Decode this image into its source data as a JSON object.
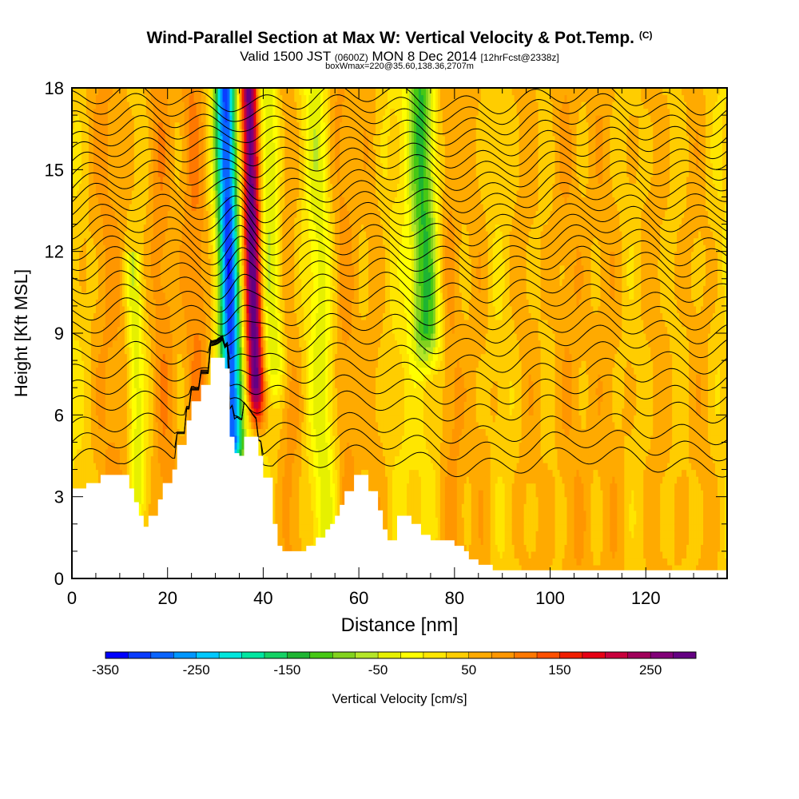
{
  "title": {
    "main": "Wind-Parallel Section at Max W: Vertical Velocity & Pot.Temp.",
    "copyright": "(C)",
    "valid_prefix": "Valid 1500 JST",
    "utc": "(0600Z)",
    "date": "MON 8 Dec 2014",
    "forecast": "[12hrFcst@2338z]",
    "box": "boxWmax=220@35.60,138.36,2707m"
  },
  "chart_data": {
    "type": "heatmap",
    "xlabel": "Distance [nm]",
    "ylabel": "Height [Kft MSL]",
    "xlim": [
      0,
      137
    ],
    "ylim": [
      0,
      18
    ],
    "x_ticks": [
      0,
      20,
      40,
      60,
      80,
      100,
      120
    ],
    "y_ticks": [
      0,
      3,
      6,
      9,
      12,
      15,
      18
    ],
    "colorbar": {
      "label": "Vertical Velocity [cm/s]",
      "range": [
        -350,
        300
      ],
      "step": 25,
      "tick_values": [
        -350,
        -250,
        -150,
        -50,
        50,
        150,
        250
      ],
      "colors": [
        "#0000ff",
        "#0a3cff",
        "#0a64ff",
        "#0096ff",
        "#00c8ff",
        "#00e6dc",
        "#00e6a0",
        "#14d264",
        "#1eb432",
        "#46c814",
        "#82d21e",
        "#b4e628",
        "#e6f000",
        "#ffff00",
        "#ffe600",
        "#ffcd00",
        "#ffaa00",
        "#ff9600",
        "#ff7800",
        "#ff5000",
        "#f01e00",
        "#e60014",
        "#c8003c",
        "#a0005a",
        "#820078",
        "#640082"
      ]
    },
    "terrain": [
      [
        0,
        3.3
      ],
      [
        3,
        3.3
      ],
      [
        3,
        3.5
      ],
      [
        6,
        3.5
      ],
      [
        6,
        3.8
      ],
      [
        12,
        3.8
      ],
      [
        12,
        3.3
      ],
      [
        13,
        3.3
      ],
      [
        13,
        2.8
      ],
      [
        14,
        2.8
      ],
      [
        14,
        2.3
      ],
      [
        15,
        2.3
      ],
      [
        15,
        1.9
      ],
      [
        16,
        1.9
      ],
      [
        16,
        2.3
      ],
      [
        18,
        2.3
      ],
      [
        18,
        2.9
      ],
      [
        19,
        2.9
      ],
      [
        19,
        3.5
      ],
      [
        21,
        3.5
      ],
      [
        21,
        4.0
      ],
      [
        22,
        4.0
      ],
      [
        22,
        4.9
      ],
      [
        24,
        4.9
      ],
      [
        24,
        5.8
      ],
      [
        25,
        5.8
      ],
      [
        25,
        6.5
      ],
      [
        27,
        6.5
      ],
      [
        27,
        7.1
      ],
      [
        29,
        7.1
      ],
      [
        29,
        8.1
      ],
      [
        32,
        8.1
      ],
      [
        32,
        7.7
      ],
      [
        33,
        7.7
      ],
      [
        33,
        5.2
      ],
      [
        34,
        5.2
      ],
      [
        34,
        4.6
      ],
      [
        35,
        4.6
      ],
      [
        35,
        4.5
      ],
      [
        36,
        4.5
      ],
      [
        36,
        5.2
      ],
      [
        39,
        5.2
      ],
      [
        39,
        4.5
      ],
      [
        40,
        4.5
      ],
      [
        40,
        3.7
      ],
      [
        42,
        3.7
      ],
      [
        42,
        2.0
      ],
      [
        43,
        2.0
      ],
      [
        43,
        1.2
      ],
      [
        44,
        1.2
      ],
      [
        44,
        1.0
      ],
      [
        49,
        1.0
      ],
      [
        49,
        1.2
      ],
      [
        51,
        1.2
      ],
      [
        51,
        1.5
      ],
      [
        53,
        1.5
      ],
      [
        53,
        1.8
      ],
      [
        54,
        1.8
      ],
      [
        54,
        2.0
      ],
      [
        55,
        2.0
      ],
      [
        55,
        2.3
      ],
      [
        56,
        2.3
      ],
      [
        56,
        2.7
      ],
      [
        57,
        2.7
      ],
      [
        57,
        3.2
      ],
      [
        59,
        3.2
      ],
      [
        59,
        3.8
      ],
      [
        62,
        3.8
      ],
      [
        62,
        3.2
      ],
      [
        64,
        3.2
      ],
      [
        64,
        2.5
      ],
      [
        65,
        2.5
      ],
      [
        65,
        1.8
      ],
      [
        66,
        1.8
      ],
      [
        66,
        1.4
      ],
      [
        68,
        1.4
      ],
      [
        68,
        2.3
      ],
      [
        71,
        2.3
      ],
      [
        71,
        2.0
      ],
      [
        73,
        2.0
      ],
      [
        73,
        1.6
      ],
      [
        75,
        1.6
      ],
      [
        75,
        1.4
      ],
      [
        80,
        1.4
      ],
      [
        80,
        1.2
      ],
      [
        82,
        1.2
      ],
      [
        82,
        1.0
      ],
      [
        83,
        1.0
      ],
      [
        83,
        0.7
      ],
      [
        85,
        0.7
      ],
      [
        85,
        0.5
      ],
      [
        88,
        0.5
      ],
      [
        88,
        0.3
      ],
      [
        137,
        0.3
      ]
    ],
    "velocity_features": [
      {
        "center": 8,
        "width": 5,
        "value": 60
      },
      {
        "center": 13,
        "width": 1.6,
        "value": -80,
        "zbottom": 3,
        "ztop": 12
      },
      {
        "center": 19,
        "width": 3,
        "value": 70
      },
      {
        "center": 26,
        "width": 3,
        "value": 80
      },
      {
        "center": 33,
        "width": 2.2,
        "value": -330,
        "zbottom": 5,
        "ztop": 18
      },
      {
        "center": 38,
        "width": 1.8,
        "value": 280,
        "zbottom": 7,
        "ztop": 18
      },
      {
        "center": 42,
        "width": 2.5,
        "value": -90,
        "zbottom": 8,
        "ztop": 18
      },
      {
        "center": 45,
        "width": 3,
        "value": 60
      },
      {
        "center": 52,
        "width": 2.5,
        "value": -60
      },
      {
        "center": 57,
        "width": 3,
        "value": 60
      },
      {
        "center": 63,
        "width": 3,
        "value": 40
      },
      {
        "center": 74,
        "width": 3,
        "value": -150,
        "zbottom": 9,
        "ztop": 18
      },
      {
        "center": 79,
        "width": 3,
        "value": 60
      },
      {
        "center": 85,
        "width": 3,
        "value": 40
      },
      {
        "center": 95,
        "width": 4,
        "value": 40
      },
      {
        "center": 104,
        "width": 4,
        "value": 50
      },
      {
        "center": 112,
        "width": 4,
        "value": 45
      },
      {
        "center": 122,
        "width": 4,
        "value": 40
      },
      {
        "center": 131,
        "width": 4,
        "value": 40
      }
    ],
    "isentrope_levels": [
      4.3,
      4.9,
      5.5,
      6.3,
      6.9,
      7.5,
      8.1,
      8.7,
      9.2,
      9.7,
      10.2,
      10.7,
      11.2,
      11.6,
      12.0,
      12.4,
      12.8,
      13.2,
      13.6,
      14.0,
      14.4,
      14.8,
      15.2,
      15.6,
      16.0,
      16.4,
      16.8,
      17.2,
      17.6
    ]
  }
}
